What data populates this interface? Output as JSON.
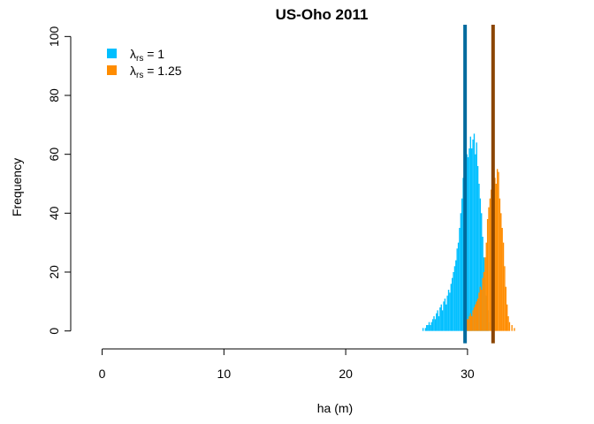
{
  "chart_data": {
    "type": "histogram",
    "title": "US-Oho 2011",
    "xlabel": "ha (m)",
    "ylabel": "Frequency",
    "xlim": [
      -2,
      34
    ],
    "ylim": [
      -4,
      104
    ],
    "x_ticks": [
      0,
      10,
      20,
      30
    ],
    "y_ticks": [
      0,
      20,
      40,
      60,
      80,
      100
    ],
    "bin_width": 0.1,
    "legend_position": "top-left",
    "legend": [
      {
        "symbol": "λ",
        "subscript": "rs",
        "suffix": " = 1",
        "color": "#00bfff"
      },
      {
        "symbol": "λ",
        "subscript": "rs",
        "suffix": " = 1.25",
        "color": "#ff8c00"
      }
    ],
    "series": [
      {
        "name": "λrs = 1",
        "color": "#00bfff",
        "bins": [
          [
            26.3,
            1
          ],
          [
            26.5,
            1
          ],
          [
            26.6,
            2
          ],
          [
            26.7,
            2
          ],
          [
            26.8,
            3
          ],
          [
            26.9,
            2
          ],
          [
            27.0,
            3
          ],
          [
            27.1,
            4
          ],
          [
            27.2,
            5
          ],
          [
            27.3,
            4
          ],
          [
            27.4,
            6
          ],
          [
            27.5,
            7
          ],
          [
            27.6,
            5
          ],
          [
            27.7,
            8
          ],
          [
            27.8,
            9
          ],
          [
            27.9,
            7
          ],
          [
            28.0,
            10
          ],
          [
            28.1,
            11
          ],
          [
            28.2,
            9
          ],
          [
            28.3,
            12
          ],
          [
            28.4,
            14
          ],
          [
            28.5,
            13
          ],
          [
            28.6,
            16
          ],
          [
            28.7,
            18
          ],
          [
            28.8,
            20
          ],
          [
            28.9,
            22
          ],
          [
            29.0,
            24
          ],
          [
            29.1,
            28
          ],
          [
            29.2,
            30
          ],
          [
            29.3,
            35
          ],
          [
            29.4,
            40
          ],
          [
            29.5,
            45
          ],
          [
            29.6,
            52
          ],
          [
            29.7,
            55
          ],
          [
            29.8,
            58
          ],
          [
            29.9,
            60
          ],
          [
            30.0,
            59
          ],
          [
            30.1,
            62
          ],
          [
            30.2,
            66
          ],
          [
            30.3,
            62
          ],
          [
            30.4,
            65
          ],
          [
            30.5,
            67
          ],
          [
            30.6,
            60
          ],
          [
            30.7,
            64
          ],
          [
            30.8,
            56
          ],
          [
            30.9,
            50
          ],
          [
            31.0,
            45
          ],
          [
            31.1,
            40
          ],
          [
            31.2,
            32
          ],
          [
            31.3,
            25
          ],
          [
            31.4,
            18
          ],
          [
            31.5,
            12
          ],
          [
            31.6,
            7
          ],
          [
            31.7,
            3
          ]
        ]
      },
      {
        "name": "λrs = 1.25",
        "color": "#ff8c00",
        "bins": [
          [
            29.8,
            3
          ],
          [
            29.9,
            4
          ],
          [
            30.0,
            4
          ],
          [
            30.1,
            5
          ],
          [
            30.2,
            6
          ],
          [
            30.3,
            5
          ],
          [
            30.4,
            7
          ],
          [
            30.5,
            8
          ],
          [
            30.6,
            9
          ],
          [
            30.7,
            10
          ],
          [
            30.8,
            11
          ],
          [
            30.9,
            13
          ],
          [
            31.0,
            15
          ],
          [
            31.1,
            14
          ],
          [
            31.2,
            18
          ],
          [
            31.3,
            20
          ],
          [
            31.4,
            25
          ],
          [
            31.5,
            30
          ],
          [
            31.6,
            38
          ],
          [
            31.7,
            42
          ],
          [
            31.8,
            45
          ],
          [
            31.9,
            48
          ],
          [
            32.0,
            49
          ],
          [
            32.1,
            50
          ],
          [
            32.2,
            52
          ],
          [
            32.3,
            50
          ],
          [
            32.4,
            55
          ],
          [
            32.5,
            54
          ],
          [
            32.6,
            45
          ],
          [
            32.7,
            40
          ],
          [
            32.8,
            35
          ],
          [
            32.9,
            30
          ],
          [
            33.0,
            22
          ],
          [
            33.1,
            15
          ],
          [
            33.2,
            9
          ],
          [
            33.3,
            5
          ],
          [
            33.4,
            3
          ],
          [
            33.6,
            2
          ],
          [
            33.8,
            1
          ]
        ]
      }
    ],
    "vlines": [
      {
        "x": 29.8,
        "color": "#006b9e"
      },
      {
        "x": 32.1,
        "color": "#8b4500"
      }
    ]
  }
}
